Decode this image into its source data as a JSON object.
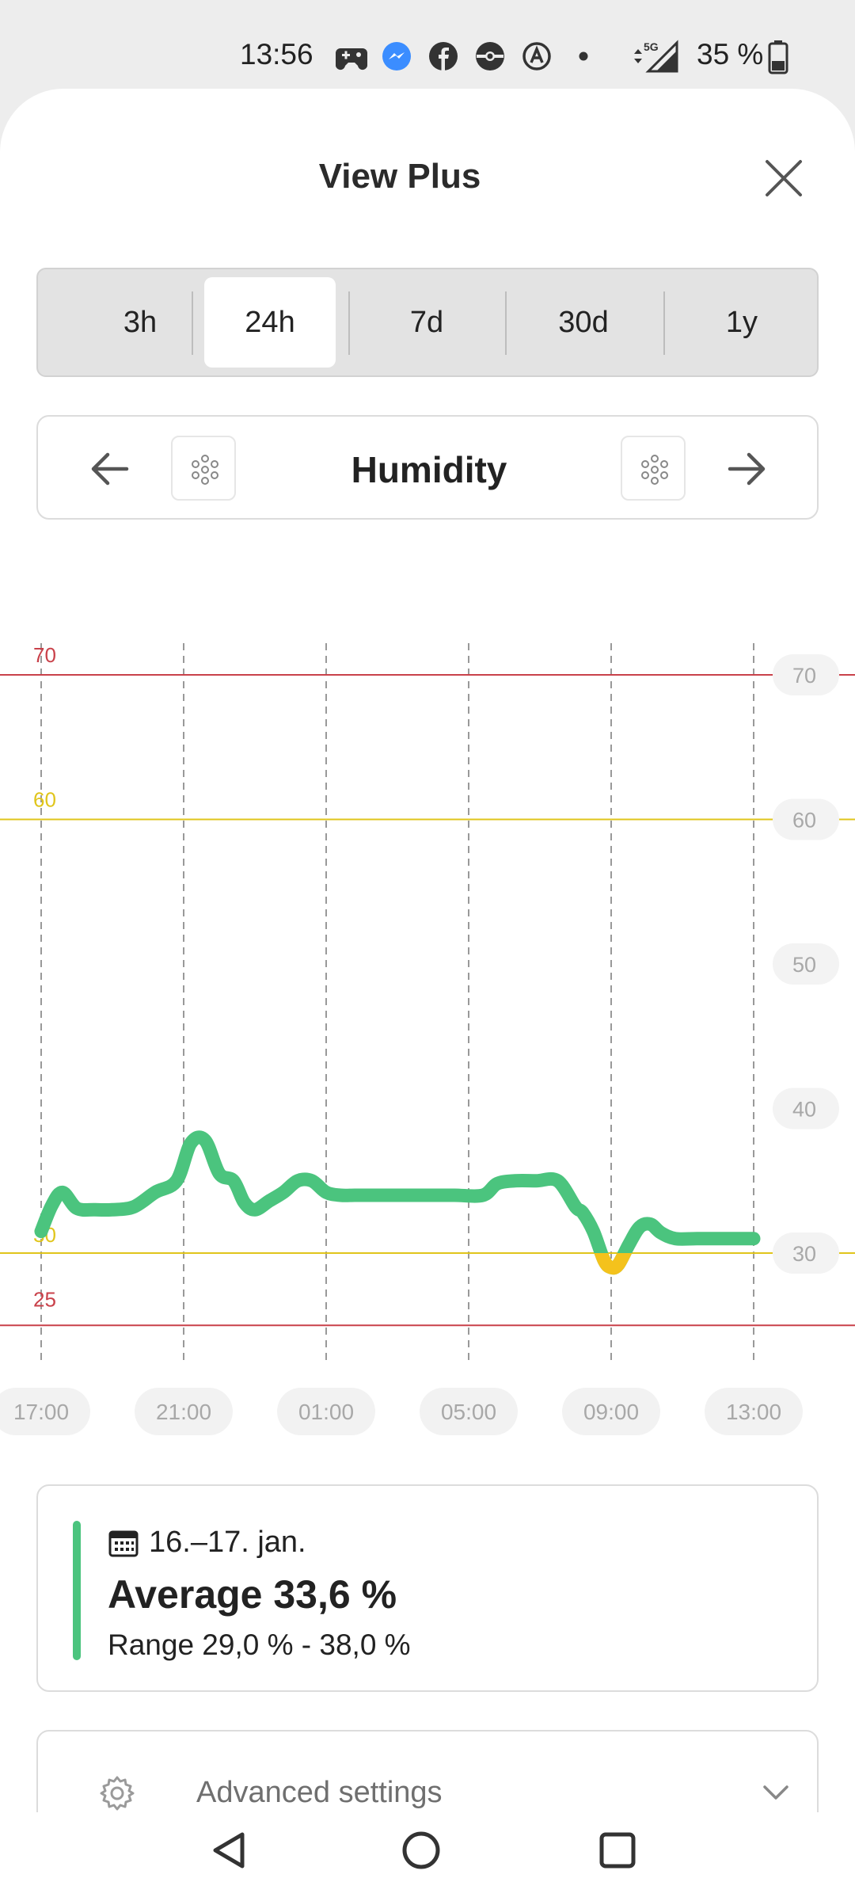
{
  "status": {
    "time": "13:56",
    "battery": "35 %",
    "icons": [
      "game-controller-icon",
      "messenger-icon",
      "facebook-icon",
      "pokeball-icon",
      "at-icon",
      "dot-icon",
      "data-arrows-5g-icon",
      "signal-icon",
      "battery-icon"
    ]
  },
  "header": {
    "title": "View Plus"
  },
  "ranges": {
    "selected": "24h",
    "options": [
      "3h",
      "24h",
      "7d",
      "30d",
      "1y"
    ]
  },
  "sensor": {
    "title": "Humidity"
  },
  "chart_data": {
    "type": "line",
    "title": "",
    "xlabel": "",
    "ylabel": "",
    "ylim": [
      21,
      73
    ],
    "y_ticks": [
      30,
      40,
      50,
      60,
      70
    ],
    "x_ticks": [
      "17:00",
      "21:00",
      "01:00",
      "05:00",
      "09:00",
      "13:00"
    ],
    "thresholds": [
      {
        "value": 70,
        "label": "70",
        "color": "#c9414a"
      },
      {
        "value": 60,
        "label": "60",
        "color": "#e0c51b"
      },
      {
        "value": 30,
        "label": "30",
        "color": "#e0c51b"
      },
      {
        "value": 25,
        "label": "25",
        "color": "#c9414a"
      }
    ],
    "series": [
      {
        "color_ok": "#4bc47e",
        "color_warn": "#f4c21c",
        "x": [
          17.0,
          17.3,
          17.6,
          18.0,
          18.5,
          19.0,
          19.6,
          20.2,
          20.8,
          21.2,
          21.6,
          22.0,
          22.4,
          22.7,
          23.0,
          23.4,
          23.8,
          24.2,
          24.6,
          25.0,
          25.4,
          25.8,
          26.2,
          27.0,
          27.8,
          28.6,
          29.4,
          29.8,
          30.3,
          30.9,
          31.5,
          32.0,
          32.2,
          32.5,
          32.8,
          33.0,
          33.2,
          33.5,
          33.8,
          34.1,
          34.4,
          34.8,
          35.4,
          36.0,
          37.0
        ],
        "y": [
          31.5,
          33.3,
          34.2,
          33.1,
          33.0,
          33.0,
          33.2,
          34.2,
          35.0,
          37.6,
          37.8,
          35.5,
          35.0,
          33.5,
          33.0,
          33.6,
          34.2,
          35.0,
          35.0,
          34.2,
          34.0,
          34.0,
          34.0,
          34.0,
          34.0,
          34.0,
          34.0,
          34.8,
          35.0,
          35.0,
          35.0,
          33.2,
          32.8,
          31.5,
          29.5,
          29.0,
          29.2,
          30.6,
          31.8,
          32.0,
          31.4,
          31.0,
          31.0,
          31.0,
          31.0
        ]
      }
    ]
  },
  "summary": {
    "date": "16.–17. jan.",
    "average": "Average 33,6 %",
    "range": "Range 29,0 % - 38,0 %"
  },
  "advanced": {
    "label": "Advanced settings"
  }
}
